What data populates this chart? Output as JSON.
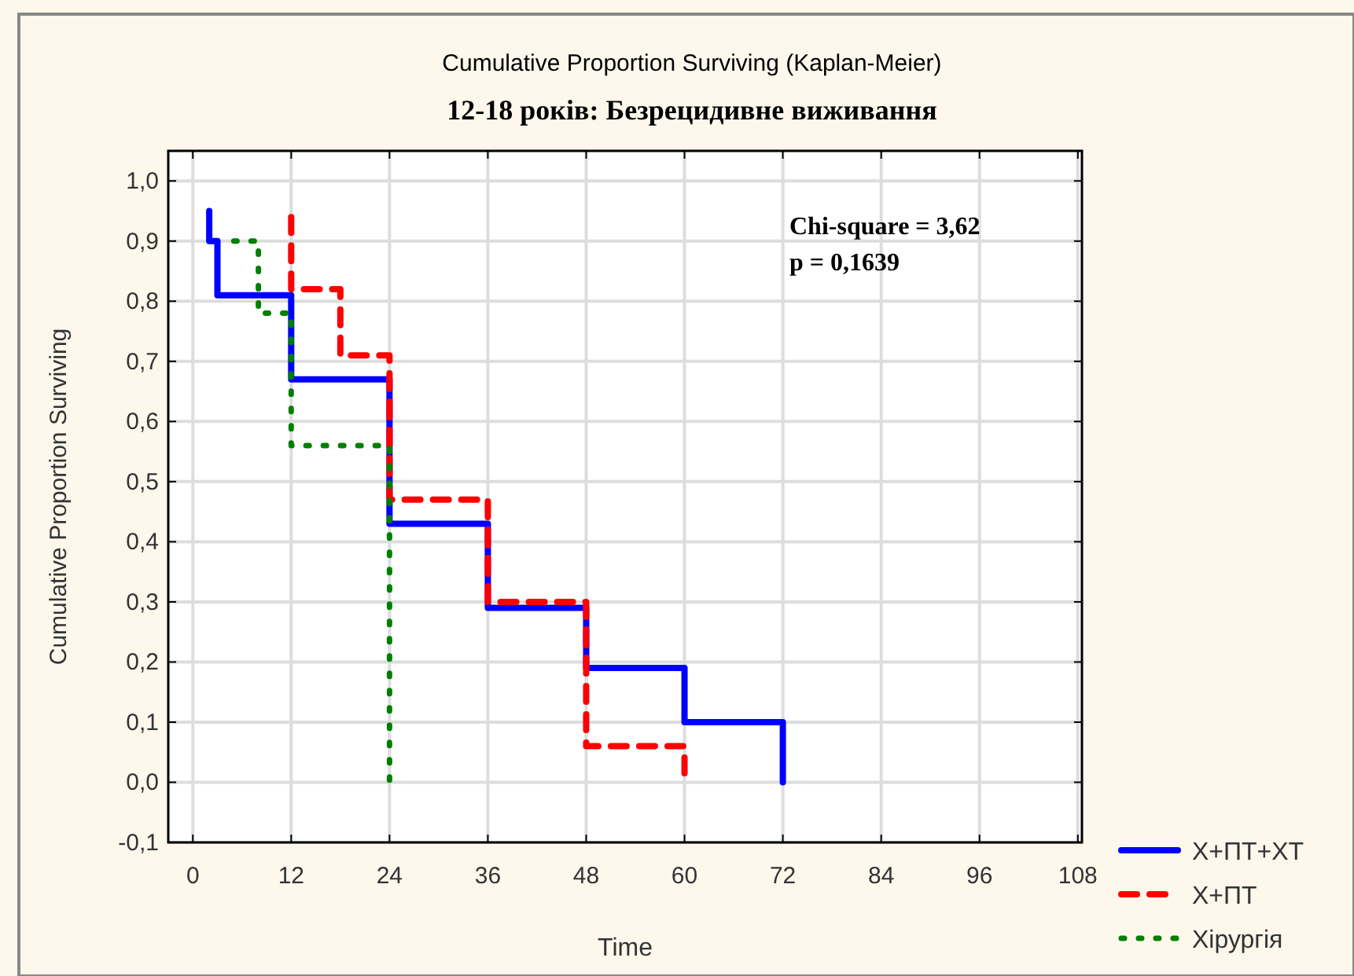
{
  "chart_data": {
    "type": "step",
    "title": "Cumulative Proportion Surviving (Kaplan-Meier)",
    "subtitle": "12-18 років: Безрецидивне виживання",
    "xlabel": "Time",
    "ylabel": "Cumulative Proportion Surviving",
    "xlim": [
      -3,
      108.5
    ],
    "xticks": [
      0,
      12,
      24,
      36,
      48,
      60,
      72,
      84,
      96,
      108
    ],
    "ylim": [
      -0.1,
      1.05
    ],
    "yticks": [
      {
        "value": -0.1,
        "label": "-0,1"
      },
      {
        "value": 0,
        "label": "0,0"
      },
      {
        "value": 0.1,
        "label": "0,1"
      },
      {
        "value": 0.2,
        "label": "0,2"
      },
      {
        "value": 0.3,
        "label": "0,3"
      },
      {
        "value": 0.4,
        "label": "0,4"
      },
      {
        "value": 0.5,
        "label": "0,5"
      },
      {
        "value": 0.6,
        "label": "0,6"
      },
      {
        "value": 0.7,
        "label": "0,7"
      },
      {
        "value": 0.8,
        "label": "0,8"
      },
      {
        "value": 0.9,
        "label": "0,9"
      },
      {
        "value": 1,
        "label": "1,0"
      }
    ],
    "grid": true,
    "legend": "bottom right",
    "marker": "none",
    "annotations": [
      "Chi-square = 3,62",
      "p = 0,1639"
    ],
    "series": [
      {
        "name": "Х+ПТ+ХТ",
        "color": "#0000ff",
        "line_style": "solid",
        "x": [
          2,
          2,
          3,
          12,
          24,
          36,
          48,
          60,
          72
        ],
        "values": [
          0.95,
          0.9,
          0.81,
          0.67,
          0.43,
          0.29,
          0.19,
          0.1,
          0
        ]
      },
      {
        "name": "Х+ПТ",
        "color": "#ff0000",
        "line_style": "dashed",
        "x": [
          12,
          12,
          18,
          24,
          36,
          48,
          60
        ],
        "values": [
          0.94,
          0.82,
          0.71,
          0.47,
          0.3,
          0.06,
          0
        ]
      },
      {
        "name": "Хірургія",
        "color": "#008000",
        "line_style": "dotted",
        "x": [
          5,
          8,
          12,
          24
        ],
        "values": [
          0.9,
          0.78,
          0.56,
          0
        ]
      }
    ]
  }
}
